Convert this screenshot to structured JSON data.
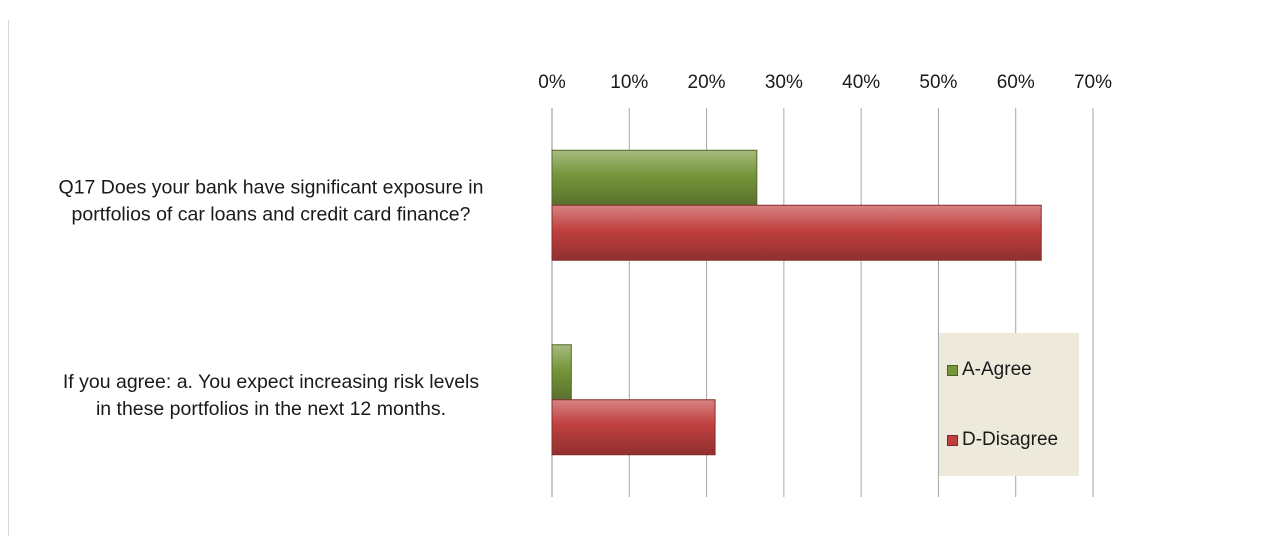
{
  "chart_data": {
    "type": "bar",
    "orientation": "horizontal",
    "categories": [
      [
        "Q17 Does your bank have significant exposure in",
        "portfolios of car loans and credit card finance?"
      ],
      [
        "If you agree: a. You expect increasing risk levels",
        "in these portfolios in the next 12 months."
      ]
    ],
    "series": [
      {
        "name": "A-Agree",
        "values": [
          26.5,
          2.5
        ],
        "color": "#76963a"
      },
      {
        "name": "D-Disagree",
        "values": [
          63.3,
          21.1
        ],
        "color": "#c0403f"
      }
    ],
    "xlim": [
      0,
      70
    ],
    "xticks": [
      "0%",
      "10%",
      "20%",
      "30%",
      "40%",
      "50%",
      "60%",
      "70%"
    ],
    "x_axis_position": "top",
    "grid": true,
    "legend_position": "bottom-right",
    "legend": [
      {
        "label": "A-Agree",
        "color": "#76963a"
      },
      {
        "label": "D-Disagree",
        "color": "#c0403f"
      }
    ]
  }
}
